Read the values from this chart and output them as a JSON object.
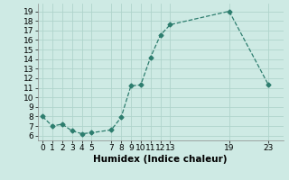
{
  "x": [
    0,
    1,
    2,
    3,
    4,
    5,
    7,
    8,
    9,
    10,
    11,
    12,
    13,
    19,
    23
  ],
  "y": [
    8.0,
    7.0,
    7.2,
    6.5,
    6.2,
    6.3,
    6.6,
    7.9,
    11.2,
    11.3,
    14.2,
    16.5,
    17.6,
    19.0,
    11.3
  ],
  "line_color": "#2d7d6e",
  "marker": "D",
  "marker_size": 2.5,
  "bg_color": "#ceeae4",
  "grid_color": "#afd4cc",
  "xlabel": "Humidex (Indice chaleur)",
  "xlim": [
    -0.5,
    24.5
  ],
  "ylim": [
    5.5,
    19.8
  ],
  "xticks": [
    0,
    1,
    2,
    3,
    4,
    5,
    7,
    8,
    9,
    10,
    11,
    12,
    13,
    19,
    23
  ],
  "yticks": [
    6,
    7,
    8,
    9,
    10,
    11,
    12,
    13,
    14,
    15,
    16,
    17,
    18,
    19
  ],
  "tick_fontsize": 6.5,
  "xlabel_fontsize": 7.5
}
